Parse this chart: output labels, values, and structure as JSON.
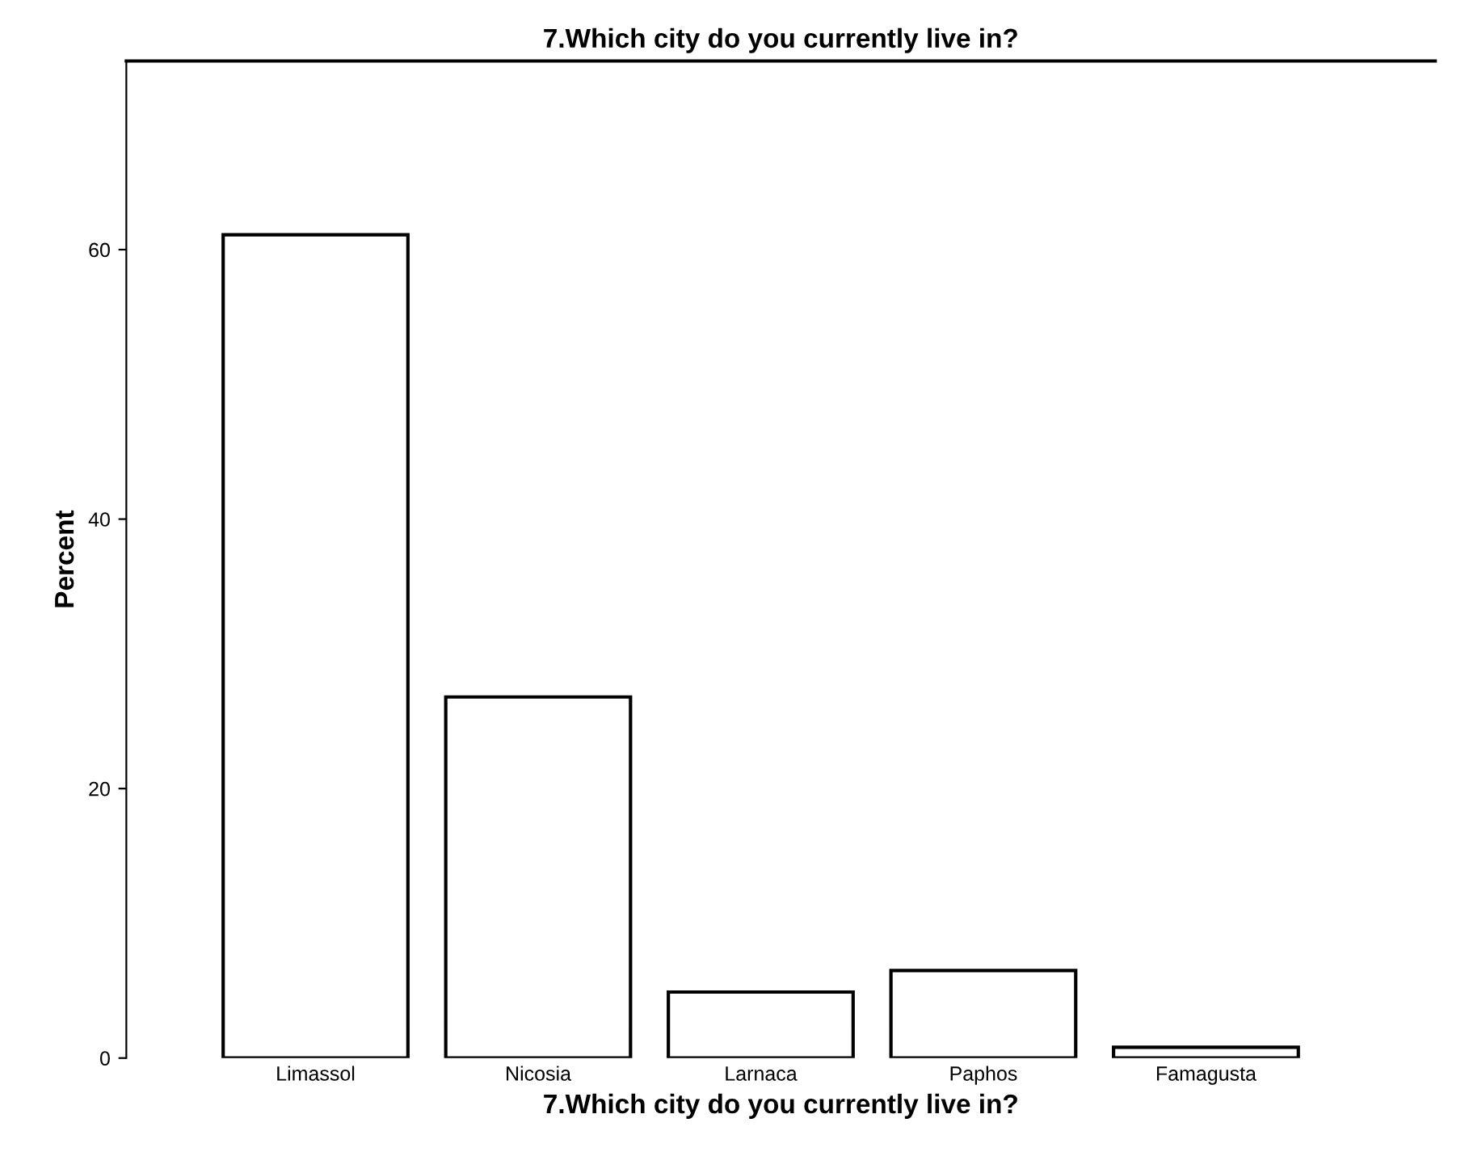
{
  "chart_data": {
    "type": "bar",
    "title": "7.Which city do you currently live in?",
    "xlabel": "7.Which city do you currently live in?",
    "ylabel": "Percent",
    "categories": [
      "Limassol",
      "Nicosia",
      "Larnaca",
      "Paphos",
      "Famagusta"
    ],
    "values": [
      61.1,
      26.8,
      4.9,
      6.5,
      0.8
    ],
    "color": "#ffffff",
    "ylim": [
      0,
      74
    ],
    "yticks": [
      0,
      20,
      40,
      60
    ],
    "grid": false,
    "legend": false
  }
}
